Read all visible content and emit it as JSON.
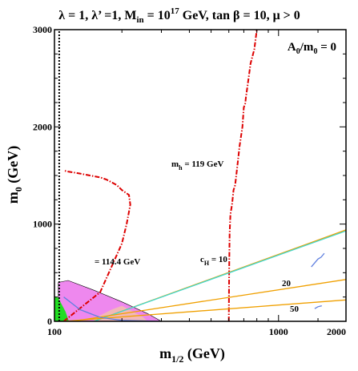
{
  "chart_data": {
    "type": "line",
    "title_parts": [
      "λ = 1, λ’ =1, M",
      "in",
      " = 10",
      "17",
      " GeV, tan β = 10,  μ > 0"
    ],
    "xlabel_parts": [
      "m",
      "1/2",
      " (GeV)"
    ],
    "ylabel_parts": [
      "m",
      "0",
      " (GeV)"
    ],
    "xlim": [
      100,
      2000
    ],
    "ylim": [
      0,
      3000
    ],
    "x_scale": "log",
    "x_ticks": [
      100,
      1000,
      2000
    ],
    "y_ticks": [
      0,
      1000,
      2000,
      3000
    ],
    "x_tick_labels": [
      "100",
      "1000",
      "2000"
    ],
    "y_tick_labels": [
      "0",
      "1000",
      "2000",
      "3000"
    ],
    "corner_label_parts": [
      "A",
      "0",
      "/m",
      "0",
      " = 0"
    ],
    "colors": {
      "higgs": "#dd0000",
      "cH": "#f0a000",
      "cH_region": "#40d8d0",
      "wmap": "#6080e0",
      "lep_chargino": "#000000",
      "green_region": "#22dd22",
      "magenta_region": "#ee88ee",
      "pink_region": "#f2b8b8"
    },
    "regions": [
      {
        "name": "magenta",
        "points": [
          [
            104,
            0
          ],
          [
            104,
            400
          ],
          [
            115,
            420
          ],
          [
            150,
            320
          ],
          [
            200,
            200
          ],
          [
            260,
            80
          ],
          [
            300,
            0
          ]
        ]
      },
      {
        "name": "pink",
        "points": [
          [
            150,
            30
          ],
          [
            180,
            120
          ],
          [
            200,
            160
          ],
          [
            220,
            110
          ],
          [
            250,
            40
          ],
          [
            260,
            0
          ],
          [
            150,
            0
          ]
        ]
      },
      {
        "name": "green",
        "points": [
          [
            100,
            0
          ],
          [
            100,
            260
          ],
          [
            104,
            240
          ],
          [
            112,
            100
          ],
          [
            116,
            0
          ]
        ]
      }
    ],
    "series": [
      {
        "name": "lep_chargino_bound",
        "style": "dotted",
        "color": "#000000",
        "x": [
          105,
          105
        ],
        "y": [
          0,
          3000
        ]
      },
      {
        "name": "higgs_114",
        "label": "= 114.4 GeV",
        "style": "dashdot",
        "color": "#dd0000",
        "x": [
          110,
          160,
          200,
          210,
          218,
          215,
          200,
          190,
          180,
          170,
          160,
          130,
          115,
          110
        ],
        "y": [
          0,
          300,
          800,
          1000,
          1200,
          1300,
          1350,
          1400,
          1430,
          1460,
          1480,
          1520,
          1540,
          1550
        ]
      },
      {
        "name": "higgs_119",
        "label_parts": [
          "m",
          "h",
          " = 119 GeV"
        ],
        "style": "dashdot",
        "color": "#dd0000",
        "x": [
          600,
          602,
          605,
          610,
          620,
          630,
          640,
          655,
          670,
          690,
          700,
          710,
          715,
          725,
          740,
          750,
          760,
          780,
          790,
          795,
          800
        ],
        "y": [
          0,
          500,
          900,
          1100,
          1200,
          1350,
          1400,
          1600,
          1800,
          2000,
          2200,
          2240,
          2300,
          2400,
          2550,
          2650,
          2700,
          2800,
          2900,
          2950,
          3000
        ]
      },
      {
        "name": "cH_10",
        "label_parts": [
          "c",
          "H",
          " =  10"
        ],
        "style": "solid",
        "color": "#f0a000",
        "x": [
          150,
          2000
        ],
        "y": [
          0,
          940
        ]
      },
      {
        "name": "cH_10_cyan",
        "style": "solid",
        "color": "#40d8d0",
        "x": [
          150,
          2000
        ],
        "y": [
          0,
          930
        ]
      },
      {
        "name": "cH_20",
        "label": "20",
        "style": "solid",
        "color": "#f0a000",
        "x": [
          120,
          2000
        ],
        "y": [
          0,
          430
        ]
      },
      {
        "name": "cH_50",
        "label": "50",
        "style": "solid",
        "color": "#f0a000",
        "x": [
          110,
          2000
        ],
        "y": [
          0,
          220
        ]
      },
      {
        "name": "wmap_strip_1",
        "style": "solid",
        "color": "#6080e0",
        "x": [
          1400,
          1500,
          1550,
          1600
        ],
        "y": [
          560,
          640,
          660,
          700
        ]
      },
      {
        "name": "wmap_strip_2",
        "style": "solid",
        "color": "#6080e0",
        "x": [
          1450,
          1500,
          1560
        ],
        "y": [
          130,
          150,
          160
        ]
      },
      {
        "name": "wmap_low",
        "style": "solid",
        "color": "#6080e0",
        "x": [
          110,
          130,
          160,
          200,
          300
        ],
        "y": [
          250,
          120,
          40,
          10,
          0
        ]
      }
    ],
    "annotations": [
      {
        "id": "ann-114",
        "text": "= 114.4 GeV"
      },
      {
        "id": "ann-119",
        "text": "m_h = 119 GeV"
      },
      {
        "id": "ann-c10",
        "text": "c_H = 10"
      },
      {
        "id": "ann-20",
        "text": "20"
      },
      {
        "id": "ann-50",
        "text": "50"
      }
    ]
  }
}
